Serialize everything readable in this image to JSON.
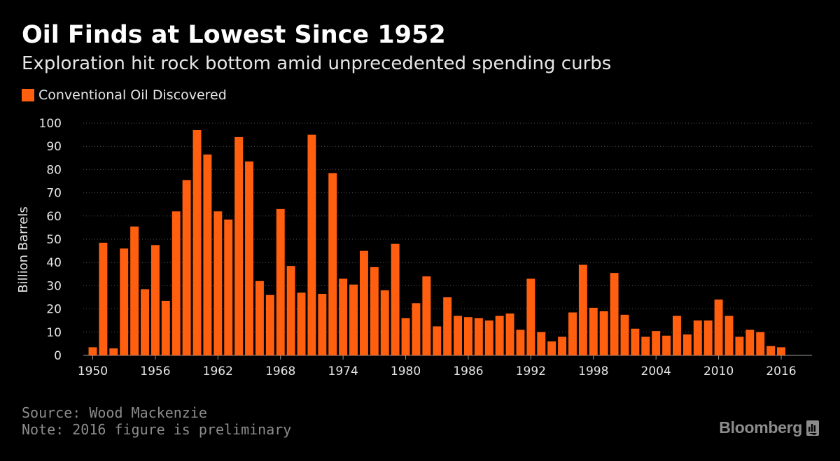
{
  "chart_data": {
    "type": "bar",
    "title": "Oil Finds at Lowest Since 1952",
    "subtitle": "Exploration hit rock bottom amid unprecedented spending curbs",
    "ylabel": "Billion Barrels",
    "xlabel": "",
    "ylim": [
      0,
      100
    ],
    "yticks": [
      0,
      10,
      20,
      30,
      40,
      50,
      60,
      70,
      80,
      90,
      100
    ],
    "xtick_labels": [
      "1950",
      "1956",
      "1962",
      "1968",
      "1974",
      "1980",
      "1986",
      "1992",
      "1998",
      "2004",
      "2010",
      "2016"
    ],
    "grid": true,
    "legend_position": "top-left",
    "series": [
      {
        "name": "Conventional Oil Discovered",
        "color": "#ff5f0f",
        "x": [
          1950,
          1951,
          1952,
          1953,
          1954,
          1955,
          1956,
          1957,
          1958,
          1959,
          1960,
          1961,
          1962,
          1963,
          1964,
          1965,
          1966,
          1967,
          1968,
          1969,
          1970,
          1971,
          1972,
          1973,
          1974,
          1975,
          1976,
          1977,
          1978,
          1979,
          1980,
          1981,
          1982,
          1983,
          1984,
          1985,
          1986,
          1987,
          1988,
          1989,
          1990,
          1991,
          1992,
          1993,
          1994,
          1995,
          1996,
          1997,
          1998,
          1999,
          2000,
          2001,
          2002,
          2003,
          2004,
          2005,
          2006,
          2007,
          2008,
          2009,
          2010,
          2011,
          2012,
          2013,
          2014,
          2015,
          2016
        ],
        "values": [
          3.5,
          48.5,
          3,
          46,
          55.5,
          28.5,
          47.5,
          23.5,
          62,
          75.5,
          97,
          86.5,
          62,
          58.5,
          94,
          83.5,
          32,
          26,
          63,
          38.5,
          27,
          95,
          26.5,
          78.5,
          33,
          30.5,
          45,
          38,
          28,
          48,
          16,
          22.5,
          34,
          12.5,
          25,
          17,
          16.5,
          16,
          15,
          17,
          18,
          11,
          33,
          10,
          6,
          8,
          18.5,
          39,
          20.5,
          19,
          35.5,
          17.5,
          11.5,
          8,
          10.5,
          8.5,
          17,
          9,
          15,
          15,
          24,
          17,
          8,
          11,
          10,
          4,
          3.5
        ]
      }
    ]
  },
  "footer": {
    "source": "Source: Wood Mackenzie",
    "note": "Note: 2016 figure is preliminary",
    "brand": "Bloomberg"
  },
  "colors": {
    "background": "#000000",
    "bar": "#ff5f0f",
    "grid": "#555555",
    "text": "#e6e6e6",
    "muted": "#8c8c8c"
  },
  "icons": {
    "brand": "bloomberg-chart-icon"
  }
}
